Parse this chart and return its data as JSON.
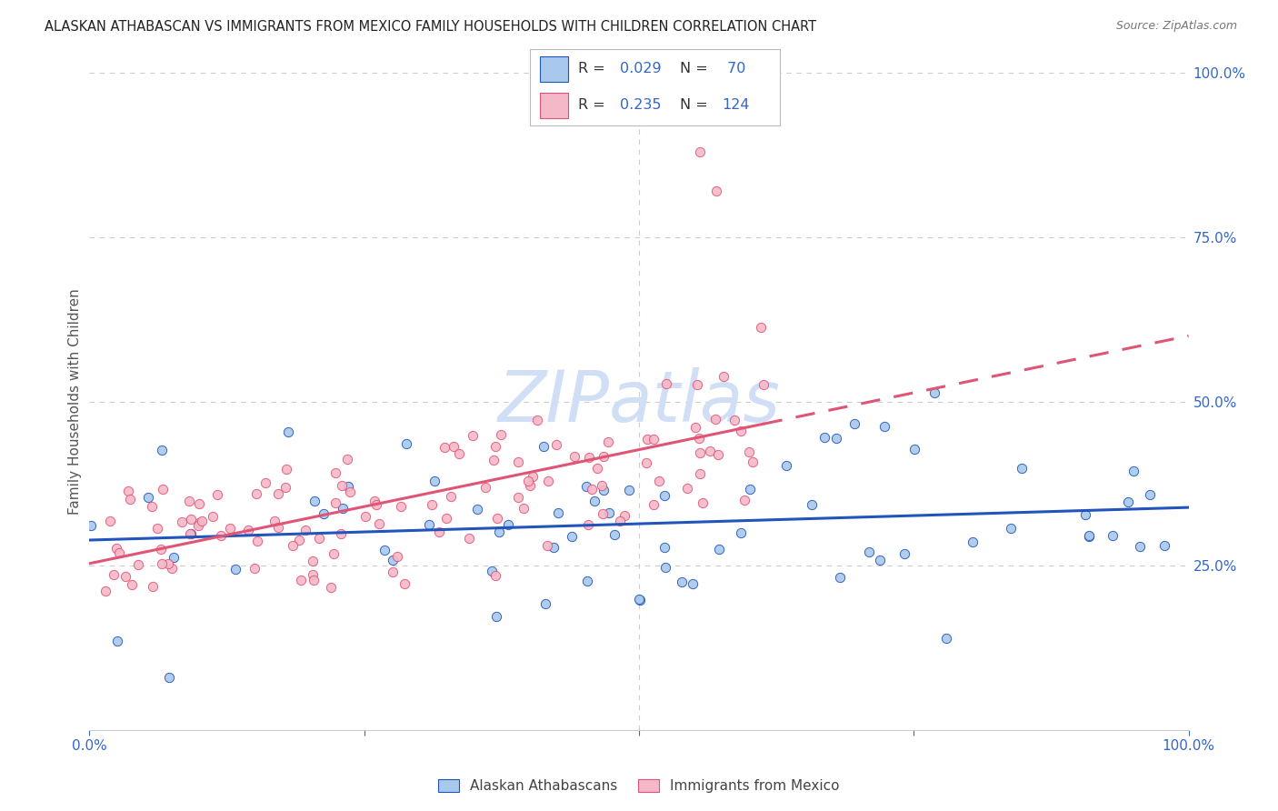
{
  "title": "ALASKAN ATHABASCAN VS IMMIGRANTS FROM MEXICO FAMILY HOUSEHOLDS WITH CHILDREN CORRELATION CHART",
  "source": "Source: ZipAtlas.com",
  "ylabel": "Family Households with Children",
  "legend_label1": "Alaskan Athabascans",
  "legend_label2": "Immigrants from Mexico",
  "color_blue": "#A8C8EC",
  "color_pink": "#F5B8C8",
  "line_color_blue": "#2255BB",
  "line_color_pink": "#E05575",
  "watermark": "ZIPatlas",
  "watermark_color": "#D0DFF5",
  "background_color": "#FFFFFF",
  "grid_color": "#CCCCCC",
  "blue_intercept": 29.5,
  "blue_slope": 0.02,
  "pink_intercept": 27.0,
  "pink_slope": 0.28
}
